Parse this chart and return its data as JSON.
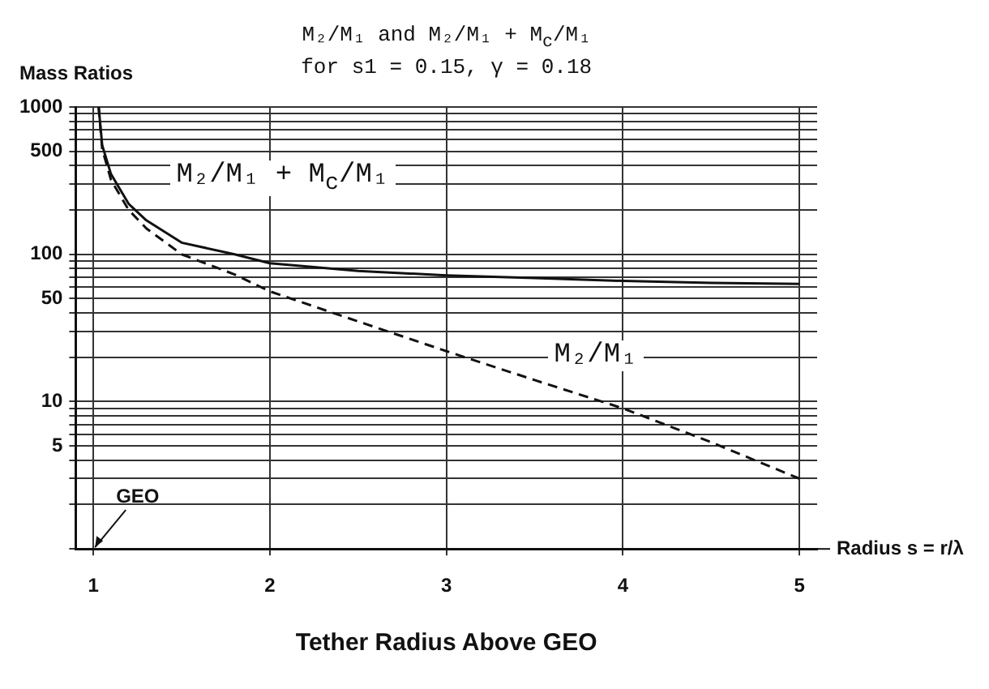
{
  "chart_data": {
    "type": "line",
    "title": "M₂/M₁ and M₂/M₁ + M$_{c}$/M₁",
    "subtitle": "for s1 = 0.15, γ = 0.18",
    "ylabel": "Mass Ratios",
    "xlabel": "Tether Radius Above GEO",
    "annotations": [
      "GEO",
      "Radius s = r/λ"
    ],
    "x": [
      1.03,
      1.05,
      1.1,
      1.2,
      1.3,
      1.5,
      1.8,
      2,
      2.5,
      3,
      3.5,
      4,
      4.5,
      5
    ],
    "series": [
      {
        "name": "M₂/M₁ + M$_{c}$/M₁",
        "color": "#111111",
        "line_style": "solid",
        "values": [
          1000,
          550,
          350,
          220,
          170,
          120,
          100,
          87,
          77,
          72,
          69,
          66,
          64,
          63
        ]
      },
      {
        "name": "M₂/M₁",
        "color": "#111111",
        "line_style": "dashed",
        "values": [
          1000,
          520,
          320,
          200,
          150,
          100,
          73,
          56,
          35,
          22,
          14,
          9,
          5.3,
          3
        ]
      }
    ],
    "log": "y",
    "xlim": [
      0.9,
      5.1
    ],
    "ylim": [
      1,
      1000
    ],
    "xticks": [
      1,
      2,
      3,
      4,
      5
    ],
    "yticks": [
      {
        "value": 1,
        "label": null
      },
      {
        "value": 2,
        "label": null
      },
      {
        "value": 3,
        "label": null
      },
      {
        "value": 4,
        "label": null
      },
      5,
      {
        "value": 6,
        "label": null
      },
      {
        "value": 7,
        "label": null
      },
      {
        "value": 8,
        "label": null
      },
      {
        "value": 9,
        "label": null
      },
      10,
      {
        "value": 20,
        "label": null
      },
      {
        "value": 30,
        "label": null
      },
      {
        "value": 40,
        "label": null
      },
      50,
      {
        "value": 60,
        "label": null
      },
      {
        "value": 70,
        "label": null
      },
      {
        "value": 80,
        "label": null
      },
      {
        "value": 90,
        "label": null
      },
      100,
      {
        "value": 200,
        "label": null
      },
      {
        "value": 300,
        "label": null
      },
      {
        "value": 400,
        "label": null
      },
      500,
      {
        "value": 600,
        "label": null
      },
      {
        "value": 700,
        "label": null
      },
      {
        "value": 800,
        "label": null
      },
      {
        "value": 900,
        "label": null
      },
      1000
    ],
    "grid": true,
    "legend": false,
    "marker": "none"
  }
}
